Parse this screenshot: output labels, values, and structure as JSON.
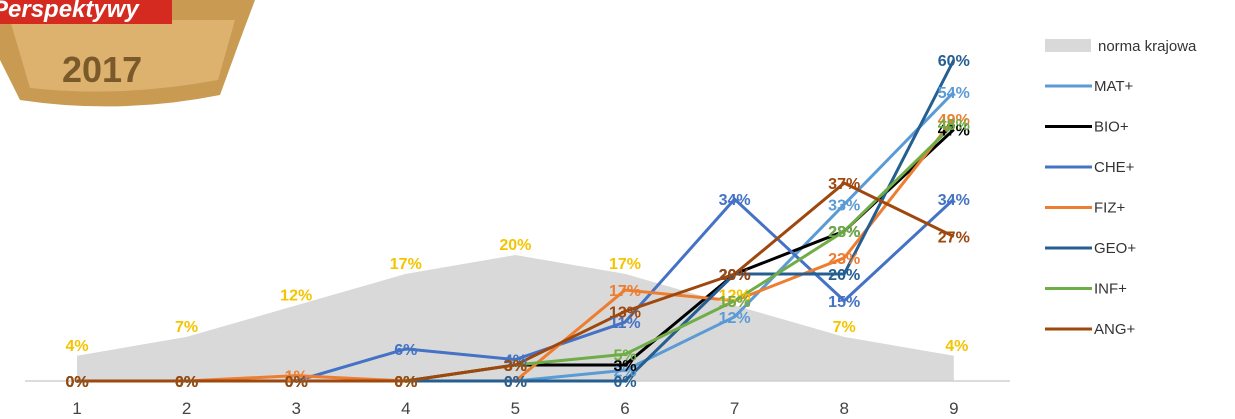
{
  "badge": {
    "brand_text": "Perspektywy",
    "year_text": "2017"
  },
  "chart_data": {
    "type": "line",
    "x": [
      1,
      2,
      3,
      4,
      5,
      6,
      7,
      8,
      9
    ],
    "ylim": [
      0,
      60
    ],
    "area": {
      "name": "norma krajowa",
      "color": "#d9d9d9",
      "label_color": "#f5c400",
      "values": [
        4,
        7,
        12,
        17,
        20,
        17,
        12,
        7,
        4
      ]
    },
    "series": [
      {
        "name": "MAT+",
        "color": "#5b9bd5",
        "values": [
          0,
          0,
          0,
          0,
          0,
          2,
          12,
          33,
          54
        ]
      },
      {
        "name": "BIO+",
        "color": "#000000",
        "values": [
          0,
          0,
          0,
          0,
          3,
          3,
          20,
          28,
          47
        ]
      },
      {
        "name": "CHE+",
        "color": "#4472c4",
        "values": [
          0,
          0,
          0,
          6,
          4,
          11,
          34,
          15,
          34
        ]
      },
      {
        "name": "FIZ+",
        "color": "#ed7d31",
        "values": [
          0,
          0,
          1,
          0,
          0,
          17,
          15,
          23,
          49
        ]
      },
      {
        "name": "GEO+",
        "color": "#255e91",
        "values": [
          0,
          0,
          0,
          0,
          0,
          0,
          20,
          20,
          60
        ]
      },
      {
        "name": "INF+",
        "color": "#70ad47",
        "values": [
          0,
          0,
          0,
          0,
          3,
          5,
          15,
          28,
          48
        ]
      },
      {
        "name": "ANG+",
        "color": "#9e480e",
        "values": [
          0,
          0,
          0,
          0,
          3,
          13,
          20,
          37,
          27
        ]
      }
    ],
    "label_suffix": "%"
  }
}
